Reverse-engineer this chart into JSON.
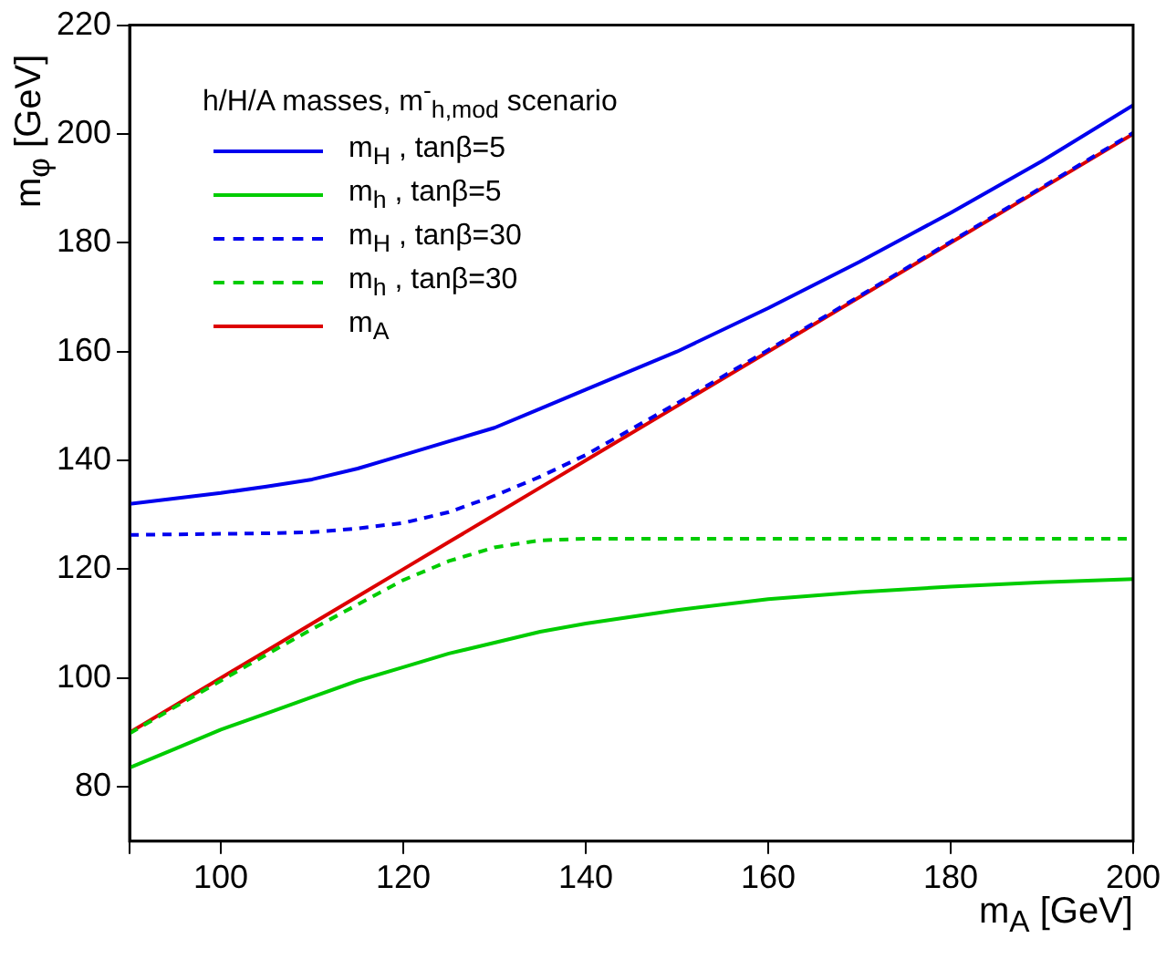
{
  "chart_data": {
    "type": "line",
    "xlabel": "m$_{A}$ [GeV]",
    "ylabel": "m$_{φ}$ [GeV]",
    "legend_title": "h/H/A masses, m$^{-}$$_{h,mod}$ scenario",
    "x": [
      90,
      95,
      100,
      105,
      110,
      115,
      120,
      125,
      130,
      135,
      140,
      150,
      160,
      170,
      180,
      190,
      200
    ],
    "series": [
      {
        "name": "m$_{H}$ , tanβ=5",
        "color": "#0000ee",
        "line_style": "solid",
        "values": [
          132,
          133,
          134,
          135.2,
          136.5,
          138.5,
          141,
          143.5,
          146,
          149.5,
          153,
          160,
          168,
          176.5,
          185.5,
          195,
          205.3
        ]
      },
      {
        "name": "m$_{h}$ , tanβ=5",
        "color": "#00cc00",
        "line_style": "solid",
        "values": [
          83.5,
          87,
          90.5,
          93.5,
          96.5,
          99.5,
          102,
          104.5,
          106.5,
          108.5,
          110,
          112.5,
          114.5,
          115.8,
          116.8,
          117.6,
          118.2
        ]
      },
      {
        "name": "m$_{H}$ , tanβ=30",
        "color": "#0000ee",
        "line_style": "dashed",
        "values": [
          126.3,
          126.4,
          126.5,
          126.6,
          126.8,
          127.5,
          128.5,
          130.5,
          133.5,
          137,
          141,
          150.5,
          160.3,
          170.2,
          180.2,
          190.2,
          200.2
        ]
      },
      {
        "name": "m$_{h}$ , tanβ=30",
        "color": "#00cc00",
        "line_style": "dashed",
        "values": [
          89.8,
          94.7,
          99.5,
          104.3,
          109,
          113.5,
          118,
          121.5,
          124,
          125.3,
          125.6,
          125.6,
          125.6,
          125.6,
          125.6,
          125.6,
          125.6
        ]
      },
      {
        "name": "m$_{A}$",
        "color": "#dd0000",
        "line_style": "solid",
        "values": [
          90,
          95,
          100,
          105,
          110,
          115,
          120,
          125,
          130,
          135,
          140,
          150,
          160,
          170,
          180,
          190,
          200
        ]
      }
    ],
    "xlim": [
      90,
      200
    ],
    "xticks": [
      {
        "value": 90,
        "label": null
      },
      100,
      120,
      140,
      160,
      180,
      200
    ],
    "ylim": [
      70,
      220
    ],
    "yticks": [
      80,
      100,
      120,
      140,
      160,
      180,
      200,
      220
    ],
    "grid": false,
    "legend": "top left",
    "marker": "none"
  }
}
